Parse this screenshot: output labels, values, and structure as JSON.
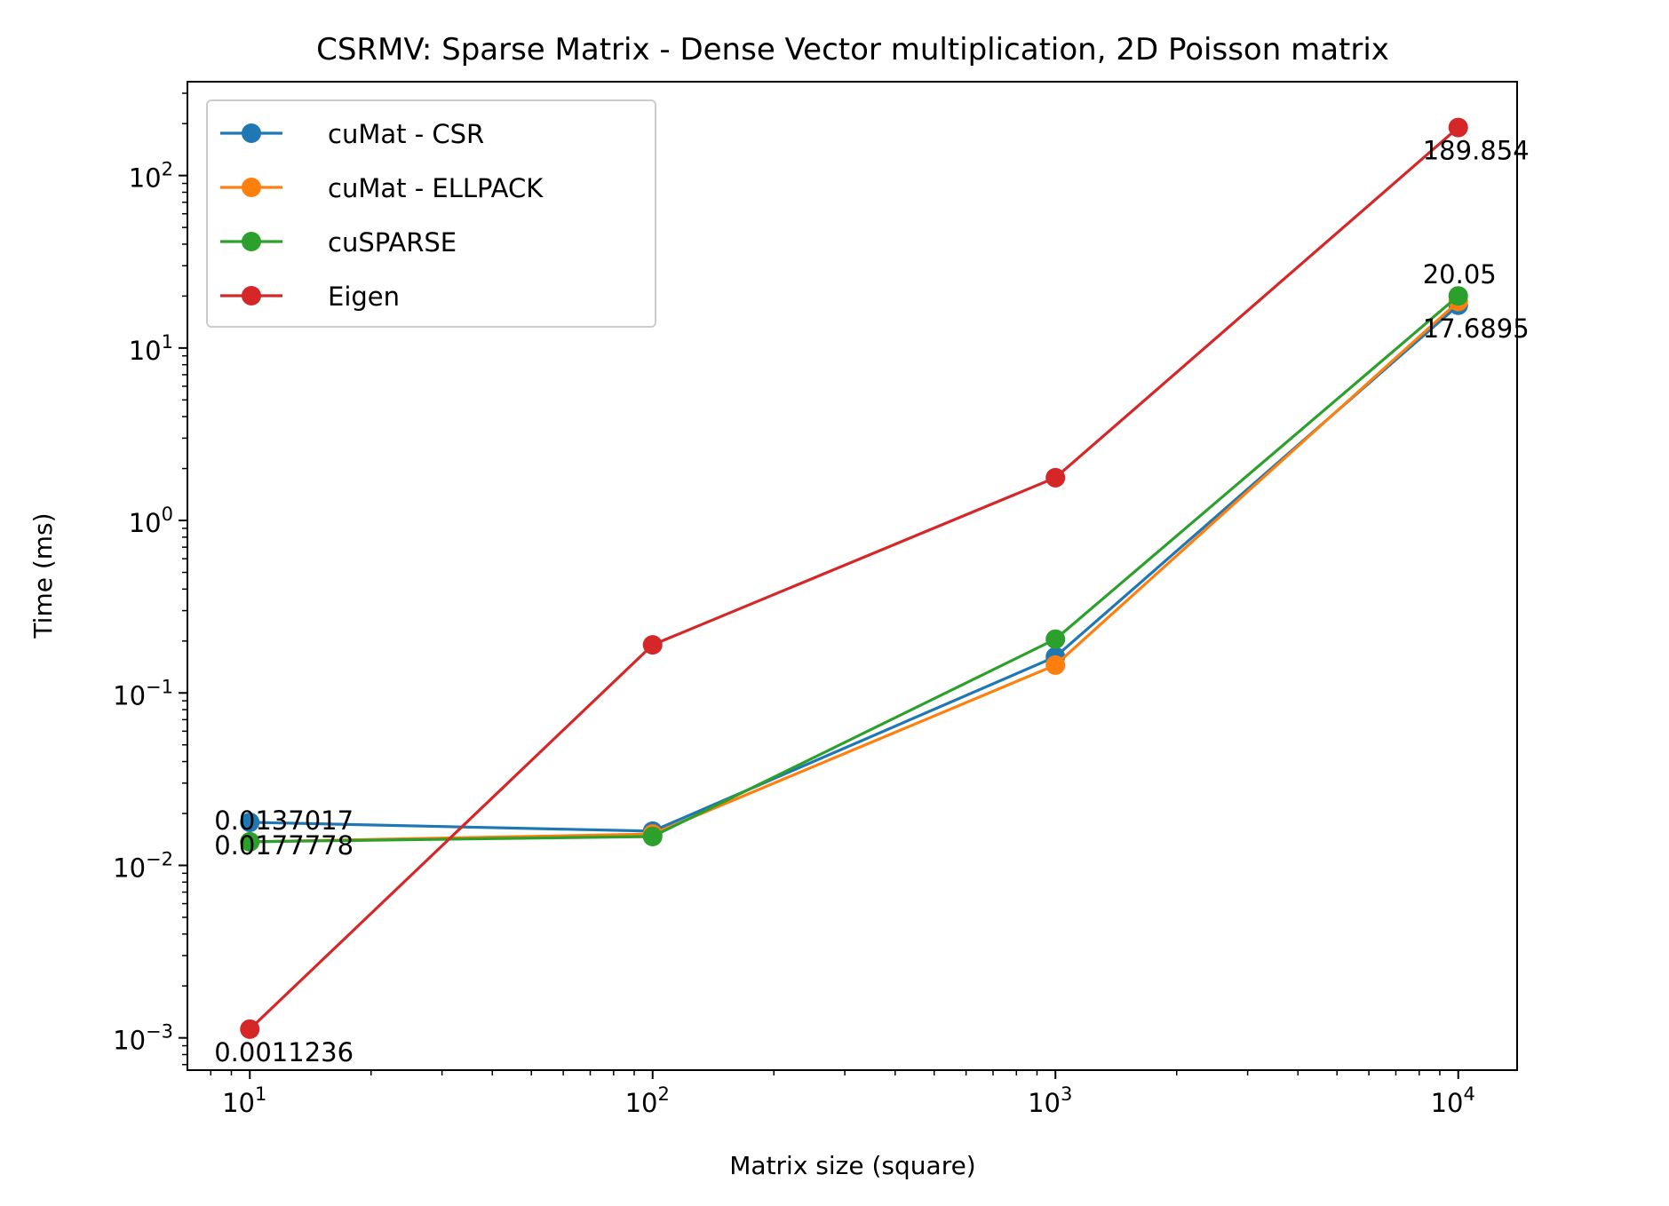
{
  "chart_data": {
    "type": "line",
    "title": "CSRMV: Sparse Matrix - Dense Vector multiplication, 2D Poisson matrix",
    "xlabel": "Matrix size (square)",
    "ylabel": "Time (ms)",
    "xscale": "log",
    "yscale": "log",
    "xlim": [
      7,
      14000
    ],
    "ylim": [
      0.00065,
      350
    ],
    "x": [
      10,
      100,
      1000,
      10000
    ],
    "xticks": [
      {
        "value": 10,
        "base": "10",
        "exp": "1"
      },
      {
        "value": 100,
        "base": "10",
        "exp": "2"
      },
      {
        "value": 1000,
        "base": "10",
        "exp": "3"
      },
      {
        "value": 10000,
        "base": "10",
        "exp": "4"
      }
    ],
    "yticks": [
      {
        "value": 0.001,
        "base": "10",
        "exp": "−3"
      },
      {
        "value": 0.01,
        "base": "10",
        "exp": "−2"
      },
      {
        "value": 0.1,
        "base": "10",
        "exp": "−1"
      },
      {
        "value": 1,
        "base": "10",
        "exp": "0"
      },
      {
        "value": 10,
        "base": "10",
        "exp": "1"
      },
      {
        "value": 100,
        "base": "10",
        "exp": "2"
      }
    ],
    "series": [
      {
        "name": "cuMat - CSR",
        "color": "#1f77b4",
        "values": [
          0.0177778,
          0.0158,
          0.162,
          17.6895
        ]
      },
      {
        "name": "cuMat - ELLPACK",
        "color": "#ff7f0e",
        "values": [
          0.0137017,
          0.0152,
          0.145,
          18.6
        ]
      },
      {
        "name": "cuSPARSE",
        "color": "#2ca02c",
        "values": [
          0.0137017,
          0.0147,
          0.205,
          20.05
        ]
      },
      {
        "name": "Eigen",
        "color": "#d62728",
        "values": [
          0.0011236,
          0.19,
          1.77,
          189.854
        ]
      }
    ],
    "annotations": [
      {
        "text": "0.0137017",
        "x": 10,
        "y": 0.0137017,
        "pos": "above"
      },
      {
        "text": "0.0177778",
        "x": 10,
        "y": 0.0177778,
        "pos": "below"
      },
      {
        "text": "0.0011236",
        "x": 10,
        "y": 0.0011236,
        "pos": "below"
      },
      {
        "text": "189.854",
        "x": 10000,
        "y": 189.854,
        "pos": "below"
      },
      {
        "text": "20.05",
        "x": 10000,
        "y": 20.05,
        "pos": "above"
      },
      {
        "text": "17.6895",
        "x": 10000,
        "y": 17.6895,
        "pos": "below"
      }
    ],
    "legend": "upper-left",
    "grid": false
  }
}
